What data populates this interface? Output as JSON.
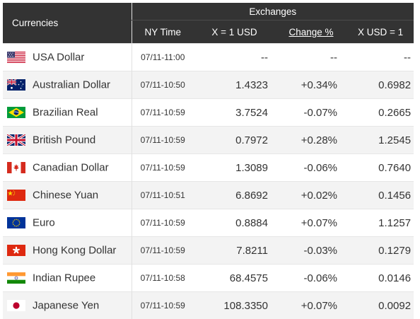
{
  "header": {
    "currencies": "Currencies",
    "exchanges": "Exchanges",
    "ny_time": "NY Time",
    "x_eq_1_usd": "X = 1 USD",
    "change_pct": "Change %",
    "x_usd_eq_1": "X USD = 1"
  },
  "rows": [
    {
      "name": "USA Dollar",
      "flag": "us-flag-icon",
      "time": "07/11-11:00",
      "rate": "--",
      "change": "--",
      "inverse": "--",
      "dir": "none"
    },
    {
      "name": "Australian Dollar",
      "flag": "au-flag-icon",
      "time": "07/11-10:50",
      "rate": "1.4323",
      "change": "+0.34%",
      "inverse": "0.6982",
      "dir": "up"
    },
    {
      "name": "Brazilian Real",
      "flag": "br-flag-icon",
      "time": "07/11-10:59",
      "rate": "3.7524",
      "change": "-0.07%",
      "inverse": "0.2665",
      "dir": "down"
    },
    {
      "name": "British Pound",
      "flag": "gb-flag-icon",
      "time": "07/11-10:59",
      "rate": "0.7972",
      "change": "+0.28%",
      "inverse": "1.2545",
      "dir": "up"
    },
    {
      "name": "Canadian Dollar",
      "flag": "ca-flag-icon",
      "time": "07/11-10:59",
      "rate": "1.3089",
      "change": "-0.06%",
      "inverse": "0.7640",
      "dir": "down"
    },
    {
      "name": "Chinese Yuan",
      "flag": "cn-flag-icon",
      "time": "07/11-10:51",
      "rate": "6.8692",
      "change": "+0.02%",
      "inverse": "0.1456",
      "dir": "up"
    },
    {
      "name": "Euro",
      "flag": "eu-flag-icon",
      "time": "07/11-10:59",
      "rate": "0.8884",
      "change": "+0.07%",
      "inverse": "1.1257",
      "dir": "up"
    },
    {
      "name": "Hong Kong Dollar",
      "flag": "hk-flag-icon",
      "time": "07/11-10:59",
      "rate": "7.8211",
      "change": "-0.03%",
      "inverse": "0.1279",
      "dir": "down"
    },
    {
      "name": "Indian Rupee",
      "flag": "in-flag-icon",
      "time": "07/11-10:58",
      "rate": "68.4575",
      "change": "-0.06%",
      "inverse": "0.0146",
      "dir": "down"
    },
    {
      "name": "Japanese Yen",
      "flag": "jp-flag-icon",
      "time": "07/11-10:59",
      "rate": "108.3350",
      "change": "+0.07%",
      "inverse": "0.0092",
      "dir": "up"
    }
  ],
  "colors": {
    "header_bg": "#333333",
    "positive": "#14962a",
    "negative": "#d62828",
    "row_alt": "#f3f3f3"
  }
}
